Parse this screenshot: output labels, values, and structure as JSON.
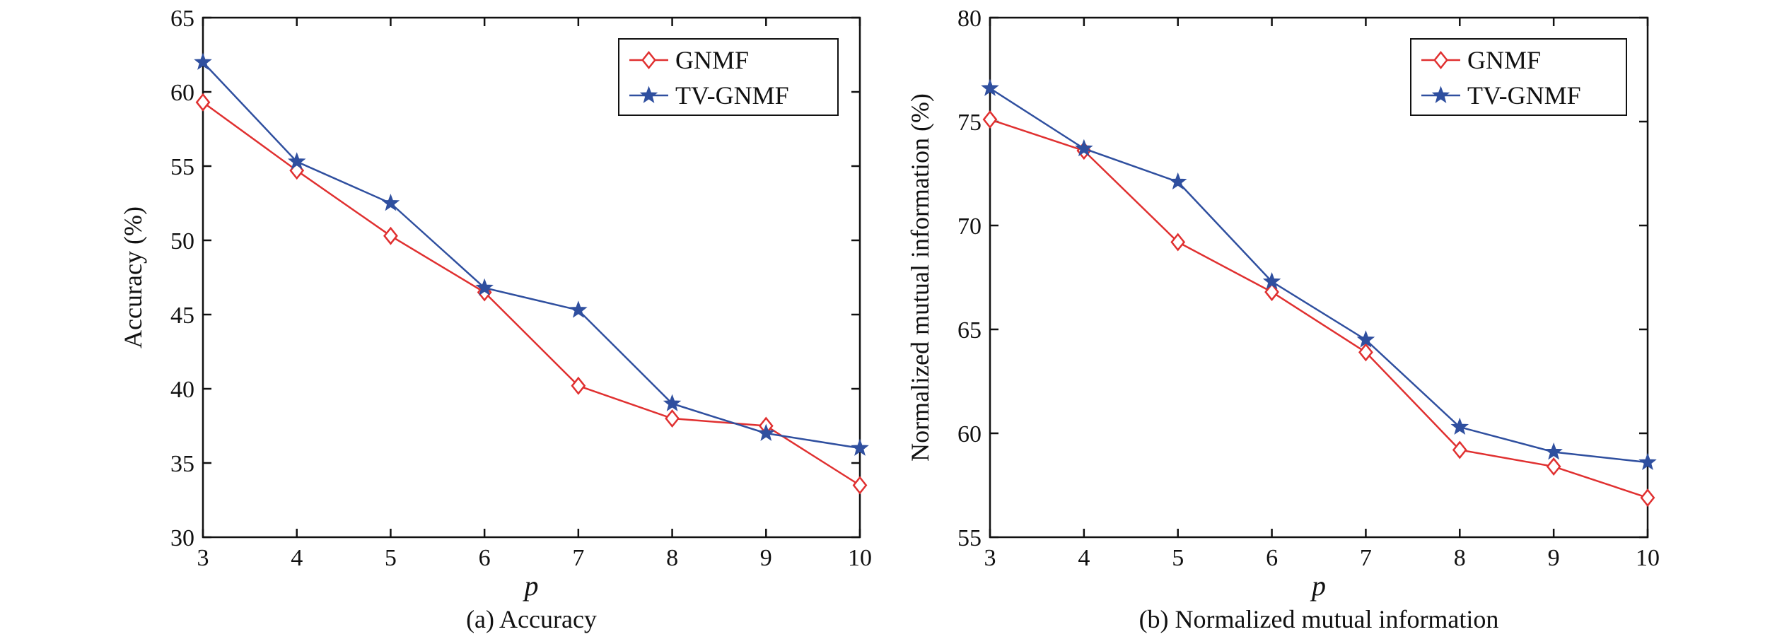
{
  "colors": {
    "GNMF": "#e03030",
    "TV-GNMF": "#2f4f9f"
  },
  "chart_data": [
    {
      "type": "line",
      "caption": "(a) Accuracy",
      "xlabel": "p",
      "ylabel": "Accuracy (%)",
      "x": [
        3,
        4,
        5,
        6,
        7,
        8,
        9,
        10
      ],
      "xlim": [
        3,
        10
      ],
      "ylim": [
        30,
        65
      ],
      "yticks": [
        30,
        35,
        40,
        45,
        50,
        55,
        60,
        65
      ],
      "legend": "top-right",
      "grid": false,
      "series": [
        {
          "name": "GNMF",
          "marker": "diamond",
          "values": [
            59.3,
            54.7,
            50.3,
            46.5,
            40.2,
            38.0,
            37.5,
            33.5
          ]
        },
        {
          "name": "TV-GNMF",
          "marker": "star",
          "values": [
            62.0,
            55.3,
            52.5,
            46.8,
            45.3,
            39.0,
            37.0,
            36.0
          ]
        }
      ]
    },
    {
      "type": "line",
      "caption": "(b) Normalized mutual information",
      "xlabel": "p",
      "ylabel": "Normalized mutual information (%)",
      "x": [
        3,
        4,
        5,
        6,
        7,
        8,
        9,
        10
      ],
      "xlim": [
        3,
        10
      ],
      "ylim": [
        55,
        80
      ],
      "yticks": [
        55,
        60,
        65,
        70,
        75,
        80
      ],
      "legend": "top-right",
      "grid": false,
      "series": [
        {
          "name": "GNMF",
          "marker": "diamond",
          "values": [
            75.1,
            73.6,
            69.2,
            66.8,
            63.9,
            59.2,
            58.4,
            56.9
          ]
        },
        {
          "name": "TV-GNMF",
          "marker": "star",
          "values": [
            76.6,
            73.7,
            72.1,
            67.3,
            64.5,
            60.3,
            59.1,
            58.6
          ]
        }
      ]
    }
  ]
}
